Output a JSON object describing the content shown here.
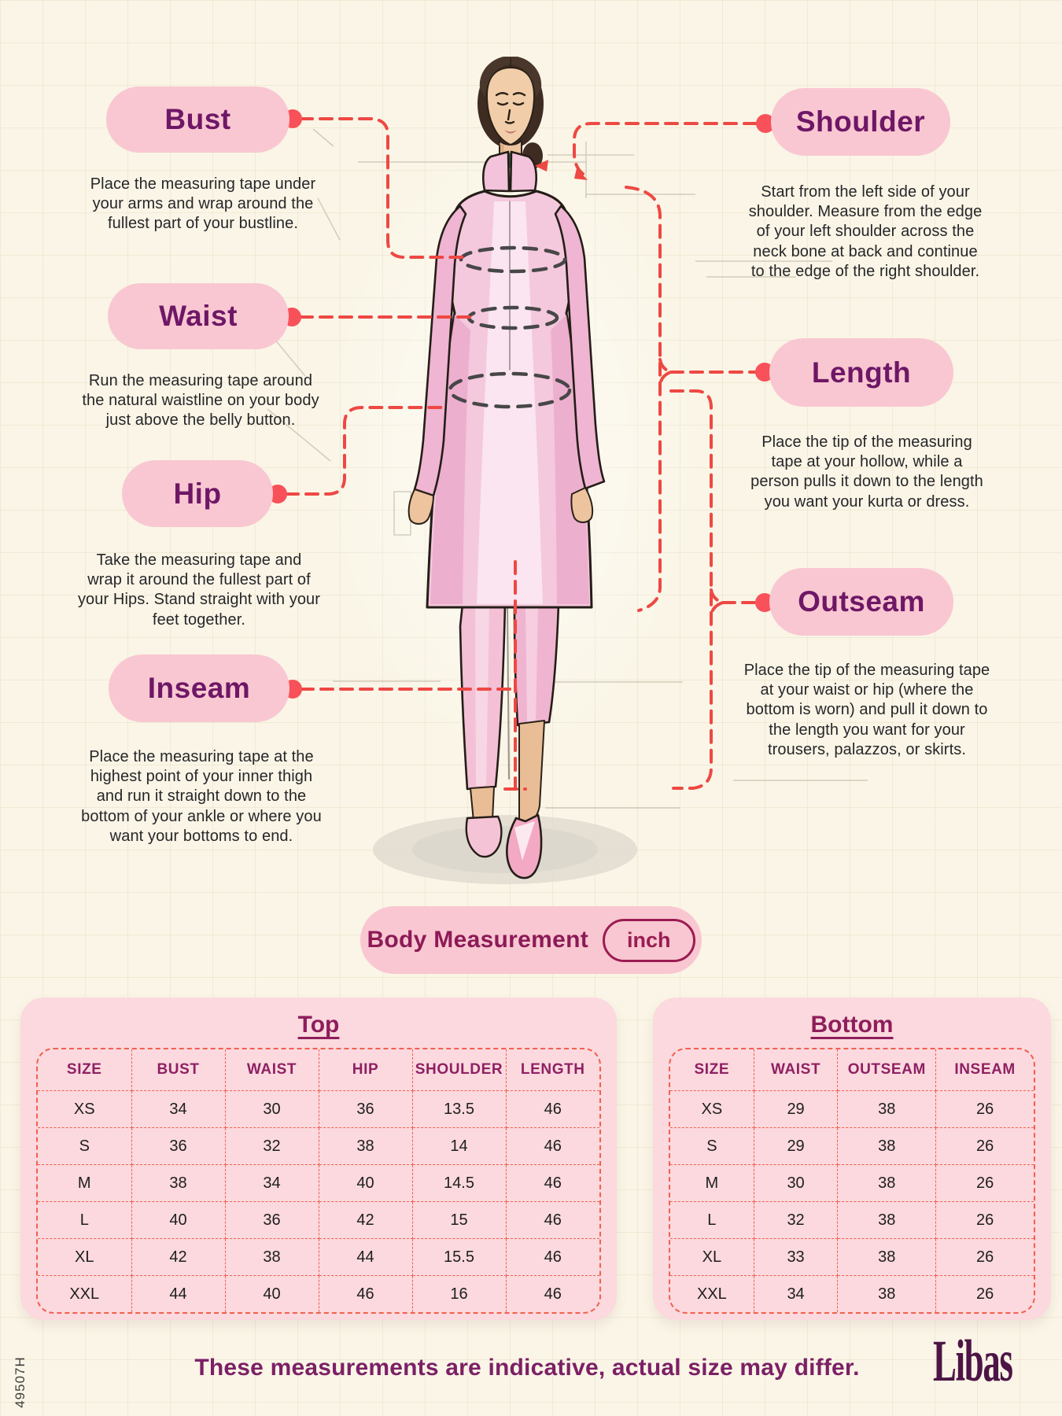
{
  "page": {
    "footer_note": "These measurements are indicative, actual size may differ.",
    "brand": "Libas",
    "side_code": "49507H"
  },
  "unit_bar": {
    "label": "Body Measurement",
    "unit": "inch"
  },
  "annotations": {
    "bust": {
      "label": "Bust",
      "description": "Place the measuring tape under your arms and wrap around the fullest part of your bustline."
    },
    "waist": {
      "label": "Waist",
      "description": "Run the measuring tape around the natural waistline on your body just above the belly button."
    },
    "hip": {
      "label": "Hip",
      "description": "Take the measuring tape and wrap it around the fullest part of your Hips. Stand straight with your feet together."
    },
    "inseam": {
      "label": "Inseam",
      "description": "Place the measuring tape at the highest point of your inner thigh and run it straight down to the bottom of your ankle or where you want your bottoms to end."
    },
    "shoulder": {
      "label": "Shoulder",
      "description": "Start from the left side of your shoulder. Measure from the edge of your left shoulder across the neck bone at back and continue to the edge of the right shoulder."
    },
    "length": {
      "label": "Length",
      "description": "Place the tip of the measuring tape at your hollow, while a person pulls it down to the length you want your kurta or dress."
    },
    "outseam": {
      "label": "Outseam",
      "description": "Place the tip of the measuring tape at your waist or hip (where the bottom is worn) and pull it down to the length you want for your trousers, palazzos, or skirts."
    }
  },
  "tables": [
    {
      "title": "Top",
      "headers": [
        "SIZE",
        "BUST",
        "WAIST",
        "HIP",
        "SHOULDER",
        "LENGTH"
      ],
      "rows": [
        [
          "XS",
          "34",
          "30",
          "36",
          "13.5",
          "46"
        ],
        [
          "S",
          "36",
          "32",
          "38",
          "14",
          "46"
        ],
        [
          "M",
          "38",
          "34",
          "40",
          "14.5",
          "46"
        ],
        [
          "L",
          "40",
          "36",
          "42",
          "15",
          "46"
        ],
        [
          "XL",
          "42",
          "38",
          "44",
          "15.5",
          "46"
        ],
        [
          "XXL",
          "44",
          "40",
          "46",
          "16",
          "46"
        ]
      ]
    },
    {
      "title": "Bottom",
      "headers": [
        "SIZE",
        "WAIST",
        "OUTSEAM",
        "INSEAM"
      ],
      "rows": [
        [
          "XS",
          "29",
          "38",
          "26"
        ],
        [
          "S",
          "29",
          "38",
          "26"
        ],
        [
          "M",
          "30",
          "38",
          "26"
        ],
        [
          "L",
          "32",
          "38",
          "26"
        ],
        [
          "XL",
          "33",
          "38",
          "26"
        ],
        [
          "XXL",
          "34",
          "38",
          "26"
        ]
      ]
    }
  ],
  "colors": {
    "background": "#FAF5E6",
    "pill_pink": "#F9C7D1",
    "card_pink": "#FBD9DE",
    "accent_red": "#EE4843",
    "dot_red": "#F8515A",
    "label_purple": "#6E1766",
    "heading_magenta": "#8E1D58",
    "table_dash": "#F1604F",
    "footer_purple": "#7C2066",
    "logo_purple": "#4D1446"
  }
}
